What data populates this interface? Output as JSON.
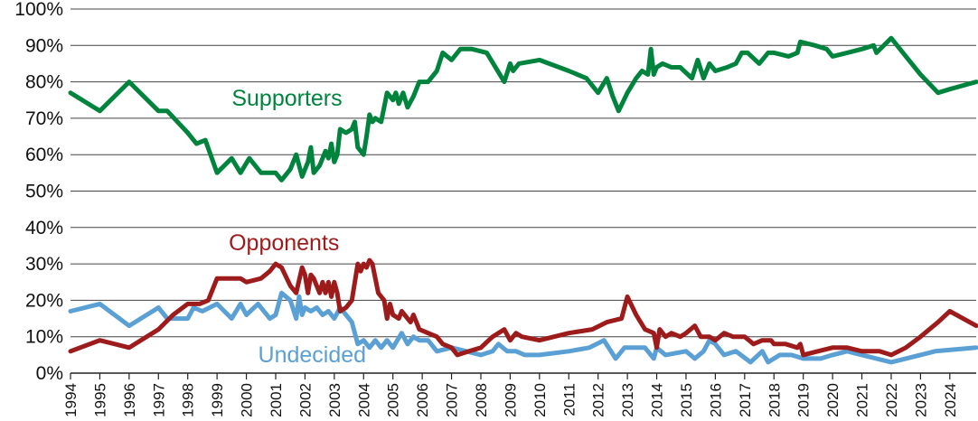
{
  "chart_data": {
    "type": "line",
    "title": "",
    "xlabel": "",
    "ylabel": "",
    "xlim": [
      1994.0,
      2024.9
    ],
    "ylim": [
      0,
      100
    ],
    "y_ticks": [
      "0%",
      "10%",
      "20%",
      "30%",
      "40%",
      "50%",
      "60%",
      "70%",
      "80%",
      "90%",
      "100%"
    ],
    "x_ticks": [
      "1994",
      "1995",
      "1996",
      "1997",
      "1998",
      "1999",
      "2000",
      "2001",
      "2002",
      "2003",
      "2004",
      "2005",
      "2006",
      "2007",
      "2008",
      "2009",
      "2010",
      "2011",
      "2012",
      "2013",
      "2014",
      "2015",
      "2016",
      "2017",
      "2018",
      "2019",
      "2020",
      "2021",
      "2022",
      "2023",
      "2024"
    ],
    "grid": "horizontal",
    "legend": "inline labels",
    "series": [
      {
        "name": "Supporters",
        "color": "#00843d",
        "label_text": "Supporters",
        "points": [
          [
            1994.0,
            77
          ],
          [
            1995.0,
            72
          ],
          [
            1996.0,
            80
          ],
          [
            1997.0,
            72
          ],
          [
            1997.3,
            72
          ],
          [
            1998.0,
            66
          ],
          [
            1998.3,
            63
          ],
          [
            1998.6,
            64
          ],
          [
            1999.0,
            55
          ],
          [
            1999.5,
            59
          ],
          [
            1999.8,
            55
          ],
          [
            2000.1,
            59
          ],
          [
            2000.5,
            55
          ],
          [
            2001.0,
            55
          ],
          [
            2001.2,
            53
          ],
          [
            2001.5,
            56
          ],
          [
            2001.7,
            60
          ],
          [
            2001.9,
            54
          ],
          [
            2002.1,
            58
          ],
          [
            2002.2,
            62
          ],
          [
            2002.3,
            55
          ],
          [
            2002.5,
            57
          ],
          [
            2002.7,
            61
          ],
          [
            2002.8,
            59
          ],
          [
            2002.9,
            63
          ],
          [
            2003.0,
            58
          ],
          [
            2003.1,
            60
          ],
          [
            2003.2,
            67
          ],
          [
            2003.4,
            66
          ],
          [
            2003.6,
            67
          ],
          [
            2003.7,
            69
          ],
          [
            2003.8,
            62
          ],
          [
            2004.0,
            60
          ],
          [
            2004.1,
            65
          ],
          [
            2004.2,
            71
          ],
          [
            2004.3,
            69
          ],
          [
            2004.4,
            70
          ],
          [
            2004.6,
            69
          ],
          [
            2004.8,
            77
          ],
          [
            2005.0,
            75
          ],
          [
            2005.1,
            77
          ],
          [
            2005.2,
            74
          ],
          [
            2005.35,
            77
          ],
          [
            2005.5,
            73
          ],
          [
            2005.7,
            76
          ],
          [
            2005.9,
            80
          ],
          [
            2006.2,
            80
          ],
          [
            2006.5,
            83
          ],
          [
            2006.7,
            88
          ],
          [
            2007.0,
            86
          ],
          [
            2007.3,
            89
          ],
          [
            2007.7,
            89
          ],
          [
            2008.2,
            88
          ],
          [
            2008.8,
            80
          ],
          [
            2009.0,
            85
          ],
          [
            2009.1,
            83
          ],
          [
            2009.3,
            85
          ],
          [
            2010.0,
            86
          ],
          [
            2011.0,
            83
          ],
          [
            2011.6,
            81
          ],
          [
            2012.0,
            77
          ],
          [
            2012.3,
            81
          ],
          [
            2012.5,
            76
          ],
          [
            2012.7,
            72
          ],
          [
            2013.0,
            77
          ],
          [
            2013.3,
            81
          ],
          [
            2013.5,
            83
          ],
          [
            2013.7,
            82
          ],
          [
            2013.8,
            89
          ],
          [
            2013.9,
            82
          ],
          [
            2014.0,
            84
          ],
          [
            2014.2,
            85
          ],
          [
            2014.5,
            84
          ],
          [
            2014.8,
            84
          ],
          [
            2015.2,
            81
          ],
          [
            2015.4,
            86
          ],
          [
            2015.6,
            81
          ],
          [
            2015.8,
            85
          ],
          [
            2016.0,
            83
          ],
          [
            2016.4,
            84
          ],
          [
            2016.7,
            85
          ],
          [
            2016.9,
            88
          ],
          [
            2017.1,
            88
          ],
          [
            2017.5,
            85
          ],
          [
            2017.8,
            88
          ],
          [
            2018.0,
            88
          ],
          [
            2018.5,
            87
          ],
          [
            2018.8,
            88
          ],
          [
            2018.9,
            91
          ],
          [
            2019.4,
            90
          ],
          [
            2019.8,
            89
          ],
          [
            2020.0,
            87
          ],
          [
            2020.5,
            88
          ],
          [
            2021.0,
            89
          ],
          [
            2021.4,
            90
          ],
          [
            2021.5,
            88
          ],
          [
            2022.0,
            92
          ],
          [
            2022.5,
            87
          ],
          [
            2023.0,
            82
          ],
          [
            2023.6,
            77
          ],
          [
            2024.0,
            78
          ],
          [
            2024.9,
            80
          ]
        ]
      },
      {
        "name": "Opponents",
        "color": "#9e1b1b",
        "label_text": "Opponents",
        "points": [
          [
            1994.0,
            6
          ],
          [
            1995.0,
            9
          ],
          [
            1996.0,
            7
          ],
          [
            1997.0,
            12
          ],
          [
            1997.5,
            16
          ],
          [
            1998.0,
            19
          ],
          [
            1998.4,
            19
          ],
          [
            1998.7,
            20
          ],
          [
            1999.0,
            26
          ],
          [
            1999.5,
            26
          ],
          [
            1999.8,
            26
          ],
          [
            2000.0,
            25
          ],
          [
            2000.5,
            26
          ],
          [
            2000.8,
            28
          ],
          [
            2001.0,
            30
          ],
          [
            2001.2,
            29
          ],
          [
            2001.5,
            24
          ],
          [
            2001.7,
            22
          ],
          [
            2001.9,
            29
          ],
          [
            2002.0,
            27
          ],
          [
            2002.1,
            22
          ],
          [
            2002.2,
            27
          ],
          [
            2002.3,
            26
          ],
          [
            2002.5,
            22
          ],
          [
            2002.6,
            25
          ],
          [
            2002.7,
            22
          ],
          [
            2002.8,
            25
          ],
          [
            2002.9,
            21
          ],
          [
            2003.0,
            25
          ],
          [
            2003.1,
            22
          ],
          [
            2003.2,
            17
          ],
          [
            2003.4,
            18
          ],
          [
            2003.6,
            20
          ],
          [
            2003.8,
            30
          ],
          [
            2003.9,
            28
          ],
          [
            2004.0,
            30
          ],
          [
            2004.1,
            29
          ],
          [
            2004.2,
            31
          ],
          [
            2004.3,
            30
          ],
          [
            2004.5,
            22
          ],
          [
            2004.7,
            20
          ],
          [
            2004.8,
            15
          ],
          [
            2004.9,
            19
          ],
          [
            2005.0,
            16
          ],
          [
            2005.2,
            15
          ],
          [
            2005.3,
            17
          ],
          [
            2005.5,
            15
          ],
          [
            2005.6,
            14
          ],
          [
            2005.7,
            16
          ],
          [
            2005.9,
            12
          ],
          [
            2006.2,
            11
          ],
          [
            2006.5,
            10
          ],
          [
            2006.7,
            8
          ],
          [
            2007.0,
            7
          ],
          [
            2007.2,
            5
          ],
          [
            2007.6,
            6
          ],
          [
            2008.0,
            7
          ],
          [
            2008.4,
            10
          ],
          [
            2008.8,
            12
          ],
          [
            2009.0,
            9
          ],
          [
            2009.2,
            11
          ],
          [
            2009.4,
            10
          ],
          [
            2010.0,
            9
          ],
          [
            2011.0,
            11
          ],
          [
            2011.8,
            12
          ],
          [
            2012.3,
            14
          ],
          [
            2012.8,
            15
          ],
          [
            2013.0,
            21
          ],
          [
            2013.3,
            16
          ],
          [
            2013.6,
            12
          ],
          [
            2013.9,
            11
          ],
          [
            2014.0,
            7
          ],
          [
            2014.1,
            12
          ],
          [
            2014.3,
            10
          ],
          [
            2014.5,
            11
          ],
          [
            2014.8,
            10
          ],
          [
            2015.0,
            11
          ],
          [
            2015.3,
            13
          ],
          [
            2015.5,
            10
          ],
          [
            2015.8,
            10
          ],
          [
            2016.0,
            9
          ],
          [
            2016.3,
            11
          ],
          [
            2016.6,
            10
          ],
          [
            2017.0,
            10
          ],
          [
            2017.3,
            8
          ],
          [
            2017.6,
            9
          ],
          [
            2017.9,
            9
          ],
          [
            2018.0,
            8
          ],
          [
            2018.4,
            8
          ],
          [
            2018.8,
            7
          ],
          [
            2018.9,
            8
          ],
          [
            2019.0,
            5
          ],
          [
            2019.5,
            6
          ],
          [
            2020.0,
            7
          ],
          [
            2020.5,
            7
          ],
          [
            2021.0,
            6
          ],
          [
            2021.6,
            6
          ],
          [
            2022.0,
            5
          ],
          [
            2022.5,
            7
          ],
          [
            2023.0,
            10
          ],
          [
            2023.6,
            14
          ],
          [
            2024.0,
            17
          ],
          [
            2024.9,
            13
          ]
        ]
      },
      {
        "name": "Undecided",
        "color": "#5aa0d5",
        "label_text": "Undecided",
        "points": [
          [
            1994.0,
            17
          ],
          [
            1995.0,
            19
          ],
          [
            1996.0,
            13
          ],
          [
            1997.0,
            18
          ],
          [
            1997.3,
            15
          ],
          [
            1998.0,
            15
          ],
          [
            1998.2,
            18
          ],
          [
            1998.5,
            17
          ],
          [
            1999.0,
            19
          ],
          [
            1999.5,
            15
          ],
          [
            1999.8,
            19
          ],
          [
            2000.0,
            16
          ],
          [
            2000.4,
            19
          ],
          [
            2000.8,
            15
          ],
          [
            2001.0,
            16
          ],
          [
            2001.2,
            22
          ],
          [
            2001.5,
            20
          ],
          [
            2001.7,
            15
          ],
          [
            2001.8,
            21
          ],
          [
            2001.9,
            16
          ],
          [
            2002.0,
            18
          ],
          [
            2002.2,
            17
          ],
          [
            2002.4,
            18
          ],
          [
            2002.6,
            16
          ],
          [
            2002.8,
            17
          ],
          [
            2003.0,
            15
          ],
          [
            2003.2,
            18
          ],
          [
            2003.4,
            16
          ],
          [
            2003.6,
            14
          ],
          [
            2003.8,
            8
          ],
          [
            2004.0,
            9
          ],
          [
            2004.2,
            7
          ],
          [
            2004.4,
            9
          ],
          [
            2004.6,
            7
          ],
          [
            2004.8,
            9
          ],
          [
            2005.0,
            7
          ],
          [
            2005.3,
            11
          ],
          [
            2005.5,
            8
          ],
          [
            2005.7,
            10
          ],
          [
            2005.9,
            9
          ],
          [
            2006.2,
            9
          ],
          [
            2006.5,
            6
          ],
          [
            2007.0,
            7
          ],
          [
            2007.5,
            6
          ],
          [
            2008.0,
            5
          ],
          [
            2008.4,
            6
          ],
          [
            2008.6,
            8
          ],
          [
            2008.9,
            6
          ],
          [
            2009.2,
            6
          ],
          [
            2009.5,
            5
          ],
          [
            2010.0,
            5
          ],
          [
            2011.0,
            6
          ],
          [
            2011.7,
            7
          ],
          [
            2012.2,
            9
          ],
          [
            2012.6,
            4
          ],
          [
            2012.9,
            7
          ],
          [
            2013.2,
            7
          ],
          [
            2013.6,
            7
          ],
          [
            2013.9,
            4
          ],
          [
            2014.0,
            7
          ],
          [
            2014.3,
            5
          ],
          [
            2015.0,
            6
          ],
          [
            2015.3,
            4
          ],
          [
            2015.6,
            6
          ],
          [
            2015.8,
            9
          ],
          [
            2016.0,
            8
          ],
          [
            2016.3,
            5
          ],
          [
            2016.7,
            6
          ],
          [
            2017.2,
            3
          ],
          [
            2017.6,
            6
          ],
          [
            2017.8,
            3
          ],
          [
            2018.2,
            5
          ],
          [
            2018.6,
            5
          ],
          [
            2019.0,
            4
          ],
          [
            2019.6,
            4
          ],
          [
            2020.0,
            5
          ],
          [
            2020.5,
            6
          ],
          [
            2021.0,
            5
          ],
          [
            2021.5,
            4
          ],
          [
            2022.0,
            3
          ],
          [
            2022.5,
            4
          ],
          [
            2023.0,
            5
          ],
          [
            2023.5,
            6
          ],
          [
            2024.9,
            7
          ]
        ]
      }
    ]
  }
}
